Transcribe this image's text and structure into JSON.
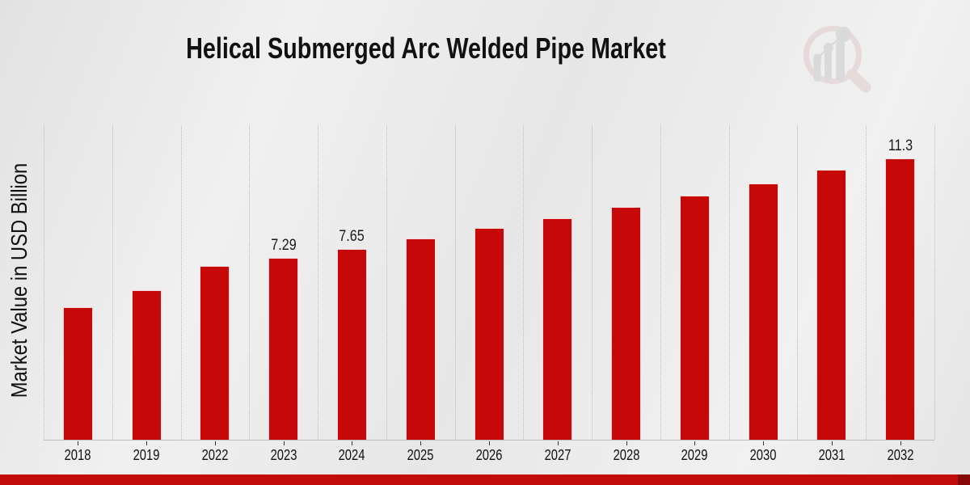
{
  "page": {
    "title": "Helical Submerged Arc Welded Pipe Market",
    "colors": {
      "bar": "#c60808",
      "footer_band": "#c20b0b",
      "footer_band_dark": "#870808",
      "gridline": "#bdbdbd",
      "background": "#eaeaea",
      "text": "#111111"
    }
  },
  "chart_data": {
    "type": "bar",
    "title": "Helical Submerged Arc Welded Pipe Market",
    "xlabel": "",
    "ylabel": "Market Value in USD Billion",
    "categories": [
      "2018",
      "2019",
      "2022",
      "2023",
      "2024",
      "2025",
      "2026",
      "2027",
      "2028",
      "2029",
      "2030",
      "2031",
      "2032"
    ],
    "values": [
      5.32,
      6.02,
      6.99,
      7.29,
      7.65,
      8.09,
      8.5,
      8.89,
      9.36,
      9.8,
      10.3,
      10.85,
      11.3
    ],
    "bar_labels": [
      "",
      "",
      "",
      "7.29",
      "7.65",
      "",
      "",
      "",
      "",
      "",
      "",
      "",
      "11.3"
    ],
    "ylim": [
      0,
      12.66
    ],
    "grid": "vertical-dotted",
    "legend": "none",
    "bar_color": "#c60808"
  }
}
